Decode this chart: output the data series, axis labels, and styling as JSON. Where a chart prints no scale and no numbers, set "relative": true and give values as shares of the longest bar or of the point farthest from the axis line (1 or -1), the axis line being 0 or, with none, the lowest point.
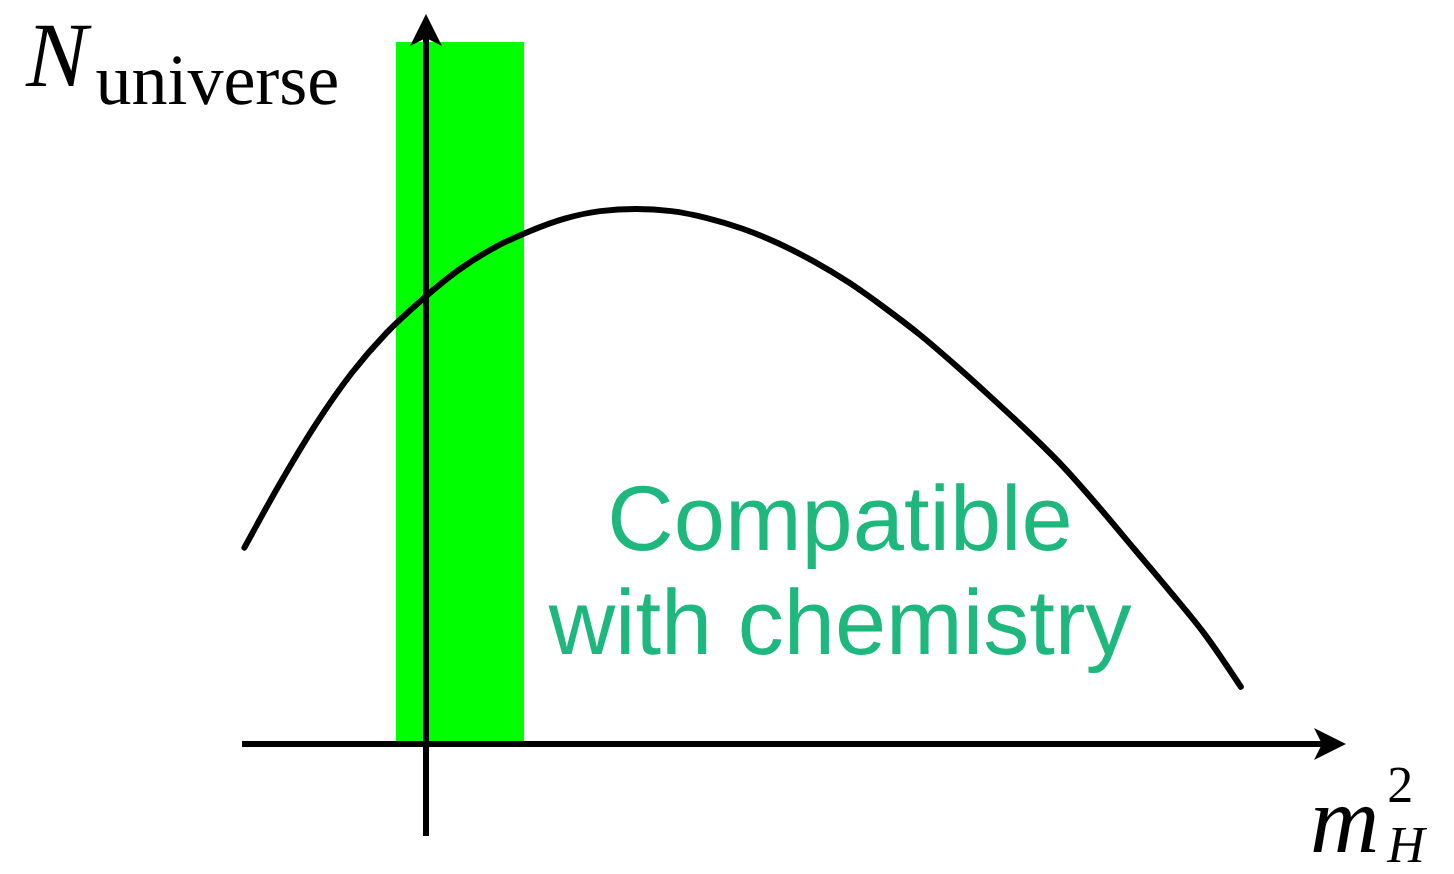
{
  "chart_data": {
    "type": "line",
    "xlabel": "m$_{H}$$^{2}$",
    "ylabel": "N$_{universe}$",
    "relative": true,
    "categories": [
      null,
      null,
      null,
      null,
      null,
      null,
      null,
      null,
      null,
      null,
      null,
      null,
      null,
      null,
      null,
      null,
      null,
      null,
      null,
      null,
      null,
      null,
      null,
      null,
      null,
      null,
      null,
      null,
      null
    ],
    "series": [
      {
        "color": "#000000",
        "values": [
          0.367,
          0.487,
          0.597,
          0.692,
          0.769,
          0.831,
          0.885,
          0.927,
          0.958,
          0.982,
          0.996,
          1.0,
          0.996,
          0.983,
          0.963,
          0.936,
          0.902,
          0.862,
          0.815,
          0.764,
          0.707,
          0.647,
          0.585,
          0.519,
          0.444,
          0.365,
          0.286,
          0.204,
          0.107
        ]
      }
    ],
    "annotations": [
      "Compatible with chemistry"
    ]
  }
}
